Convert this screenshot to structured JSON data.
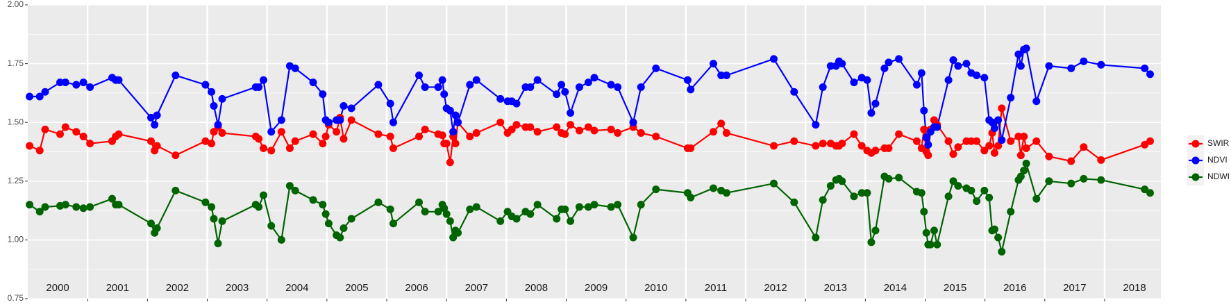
{
  "chart_data": {
    "type": "line",
    "x": [
      2000.03,
      2000.2,
      2000.29,
      2000.54,
      2000.63,
      2000.81,
      2000.93,
      2001.04,
      2001.41,
      2001.47,
      2001.52,
      2002.06,
      2002.12,
      2002.16,
      2002.47,
      2002.97,
      2003.07,
      2003.11,
      2003.18,
      2003.25,
      2003.81,
      2003.86,
      2003.94,
      2004.07,
      2004.24,
      2004.38,
      2004.47,
      2004.77,
      2004.93,
      2004.98,
      2005.03,
      2005.16,
      2005.22,
      2005.28,
      2005.41,
      2005.86,
      2006.06,
      2006.11,
      2006.54,
      2006.64,
      2006.86,
      2006.93,
      2006.96,
      2007.0,
      2007.06,
      2007.11,
      2007.15,
      2007.19,
      2007.39,
      2007.5,
      2007.9,
      2008.02,
      2008.09,
      2008.17,
      2008.32,
      2008.4,
      2008.52,
      2008.84,
      2008.92,
      2008.98,
      2009.07,
      2009.22,
      2009.37,
      2009.47,
      2009.75,
      2009.86,
      2010.12,
      2010.25,
      2010.5,
      2011.03,
      2011.08,
      2011.46,
      2011.59,
      2011.68,
      2012.47,
      2012.81,
      2013.17,
      2013.29,
      2013.42,
      2013.51,
      2013.56,
      2013.61,
      2013.81,
      2013.94,
      2014.03,
      2014.1,
      2014.17,
      2014.32,
      2014.39,
      2014.56,
      2014.86,
      2014.94,
      2014.98,
      2015.02,
      2015.05,
      2015.09,
      2015.15,
      2015.2,
      2015.39,
      2015.47,
      2015.55,
      2015.69,
      2015.77,
      2015.86,
      2015.99,
      2016.07,
      2016.12,
      2016.16,
      2016.22,
      2016.28,
      2016.43,
      2016.56,
      2016.6,
      2016.65,
      2016.69,
      2016.86,
      2017.07,
      2017.44,
      2017.65,
      2017.94,
      2018.67,
      2018.76
    ],
    "series": [
      {
        "name": "SWIR",
        "color": "#ff0000",
        "values": [
          1.4,
          1.38,
          1.47,
          1.45,
          1.48,
          1.46,
          1.44,
          1.41,
          1.42,
          1.44,
          1.45,
          1.42,
          1.38,
          1.4,
          1.36,
          1.42,
          1.41,
          1.46,
          1.48,
          1.455,
          1.44,
          1.43,
          1.39,
          1.38,
          1.46,
          1.39,
          1.42,
          1.45,
          1.41,
          1.44,
          1.49,
          1.46,
          1.52,
          1.43,
          1.51,
          1.45,
          1.44,
          1.39,
          1.44,
          1.47,
          1.45,
          1.445,
          1.41,
          1.41,
          1.33,
          1.44,
          1.41,
          1.5,
          1.44,
          1.455,
          1.5,
          1.455,
          1.47,
          1.49,
          1.48,
          1.48,
          1.46,
          1.48,
          1.455,
          1.45,
          1.49,
          1.465,
          1.48,
          1.465,
          1.47,
          1.455,
          1.48,
          1.455,
          1.44,
          1.39,
          1.39,
          1.46,
          1.495,
          1.455,
          1.4,
          1.42,
          1.4,
          1.41,
          1.41,
          1.4,
          1.4,
          1.41,
          1.45,
          1.4,
          1.38,
          1.37,
          1.38,
          1.39,
          1.39,
          1.45,
          1.42,
          1.39,
          1.47,
          1.375,
          1.36,
          1.47,
          1.51,
          1.49,
          1.42,
          1.365,
          1.395,
          1.42,
          1.42,
          1.42,
          1.38,
          1.4,
          1.455,
          1.37,
          1.4,
          1.56,
          1.42,
          1.44,
          1.36,
          1.44,
          1.39,
          1.42,
          1.355,
          1.335,
          1.395,
          1.34,
          1.405,
          1.42
        ]
      },
      {
        "name": "NDVI",
        "color": "#0000ff",
        "values": [
          1.61,
          1.61,
          1.63,
          1.67,
          1.67,
          1.66,
          1.67,
          1.65,
          1.69,
          1.68,
          1.68,
          1.52,
          1.49,
          1.53,
          1.7,
          1.66,
          1.63,
          1.57,
          1.49,
          1.6,
          1.65,
          1.65,
          1.68,
          1.46,
          1.51,
          1.74,
          1.73,
          1.67,
          1.62,
          1.51,
          1.5,
          1.51,
          1.51,
          1.57,
          1.56,
          1.66,
          1.58,
          1.5,
          1.7,
          1.65,
          1.65,
          1.68,
          1.62,
          1.56,
          1.55,
          1.46,
          1.53,
          1.5,
          1.66,
          1.68,
          1.6,
          1.59,
          1.59,
          1.58,
          1.65,
          1.65,
          1.68,
          1.62,
          1.66,
          1.63,
          1.54,
          1.65,
          1.67,
          1.69,
          1.66,
          1.65,
          1.5,
          1.65,
          1.73,
          1.68,
          1.64,
          1.75,
          1.7,
          1.7,
          1.77,
          1.63,
          1.49,
          1.65,
          1.74,
          1.74,
          1.76,
          1.75,
          1.67,
          1.69,
          1.68,
          1.54,
          1.58,
          1.73,
          1.755,
          1.77,
          1.66,
          1.71,
          1.55,
          1.435,
          1.405,
          1.46,
          1.48,
          1.48,
          1.68,
          1.765,
          1.74,
          1.75,
          1.71,
          1.7,
          1.69,
          1.51,
          1.5,
          1.475,
          1.51,
          1.425,
          1.605,
          1.79,
          1.74,
          1.81,
          1.815,
          1.59,
          1.74,
          1.73,
          1.76,
          1.745,
          1.73,
          1.705
        ]
      },
      {
        "name": "NDWI",
        "color": "#006400",
        "values": [
          1.15,
          1.12,
          1.14,
          1.145,
          1.15,
          1.14,
          1.135,
          1.14,
          1.175,
          1.15,
          1.15,
          1.07,
          1.03,
          1.05,
          1.21,
          1.16,
          1.14,
          1.09,
          0.985,
          1.08,
          1.15,
          1.14,
          1.19,
          1.06,
          1.0,
          1.23,
          1.21,
          1.17,
          1.15,
          1.11,
          1.07,
          1.02,
          1.01,
          1.05,
          1.09,
          1.16,
          1.13,
          1.07,
          1.16,
          1.12,
          1.12,
          1.15,
          1.135,
          1.11,
          1.08,
          1.01,
          1.04,
          1.03,
          1.13,
          1.14,
          1.08,
          1.12,
          1.1,
          1.09,
          1.12,
          1.11,
          1.15,
          1.09,
          1.13,
          1.13,
          1.08,
          1.14,
          1.14,
          1.15,
          1.14,
          1.15,
          1.01,
          1.15,
          1.215,
          1.2,
          1.18,
          1.22,
          1.21,
          1.2,
          1.24,
          1.16,
          1.01,
          1.17,
          1.23,
          1.255,
          1.26,
          1.25,
          1.185,
          1.2,
          1.2,
          0.99,
          1.04,
          1.27,
          1.26,
          1.265,
          1.205,
          1.2,
          1.12,
          1.03,
          0.98,
          0.98,
          1.04,
          0.98,
          1.185,
          1.25,
          1.23,
          1.22,
          1.21,
          1.165,
          1.21,
          1.18,
          1.04,
          1.045,
          1.01,
          0.95,
          1.12,
          1.255,
          1.27,
          1.295,
          1.325,
          1.175,
          1.25,
          1.24,
          1.26,
          1.255,
          1.215,
          1.2
        ]
      }
    ],
    "xlim": [
      2000,
      2018.94
    ],
    "xticks": [
      {
        "value": 2000.5,
        "label": "2000"
      },
      {
        "value": 2001.5,
        "label": "2001"
      },
      {
        "value": 2002.5,
        "label": "2002"
      },
      {
        "value": 2003.5,
        "label": "2003"
      },
      {
        "value": 2004.5,
        "label": "2004"
      },
      {
        "value": 2005.5,
        "label": "2005"
      },
      {
        "value": 2006.5,
        "label": "2006"
      },
      {
        "value": 2007.5,
        "label": "2007"
      },
      {
        "value": 2008.5,
        "label": "2008"
      },
      {
        "value": 2009.5,
        "label": "2009"
      },
      {
        "value": 2010.5,
        "label": "2010"
      },
      {
        "value": 2011.5,
        "label": "2011"
      },
      {
        "value": 2012.5,
        "label": "2012"
      },
      {
        "value": 2013.5,
        "label": "2013"
      },
      {
        "value": 2014.5,
        "label": "2014"
      },
      {
        "value": 2015.5,
        "label": "2015"
      },
      {
        "value": 2016.5,
        "label": "2016"
      },
      {
        "value": 2017.5,
        "label": "2017"
      },
      {
        "value": 2018.5,
        "label": "2018"
      }
    ],
    "ylim": [
      0.75,
      2.0
    ],
    "yticks": [
      {
        "value": 0.75,
        "label": "0.75"
      },
      {
        "value": 1,
        "label": "1.00"
      },
      {
        "value": 1.25,
        "label": "1.25"
      },
      {
        "value": 1.5,
        "label": "1.50"
      },
      {
        "value": 1.75,
        "label": "1.75"
      },
      {
        "value": 2,
        "label": "2.00"
      }
    ],
    "grid": true,
    "legend": "right"
  }
}
